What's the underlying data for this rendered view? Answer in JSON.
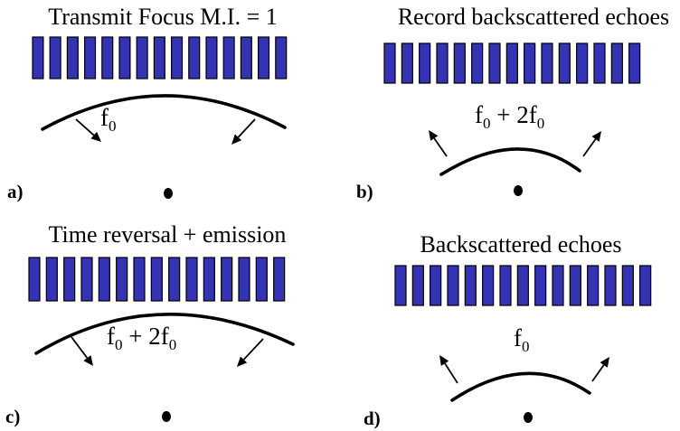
{
  "element_color": "#3333b3",
  "elements_per_array": 15,
  "panels": [
    {
      "id": "a",
      "label": "a)",
      "title": "Transmit Focus M.I. = 1",
      "freq": {
        "base": "f",
        "sub": "0",
        "extra": null
      }
    },
    {
      "id": "b",
      "label": "b)",
      "title": "Record backscattered echoes",
      "freq": {
        "base": "f",
        "sub": "0",
        "extra": {
          "text": " + 2f",
          "sub": "0"
        }
      }
    },
    {
      "id": "c",
      "label": "c)",
      "title": "Time reversal + emission",
      "freq": {
        "base": "f",
        "sub": "0",
        "extra": {
          "text": " + 2f",
          "sub": "0"
        }
      }
    },
    {
      "id": "d",
      "label": "d)",
      "title": "Backscattered echoes",
      "freq": {
        "base": "f",
        "sub": "0",
        "extra": null
      }
    }
  ]
}
